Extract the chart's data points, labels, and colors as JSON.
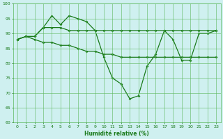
{
  "xlabel": "Humidité relative (%)",
  "background_color": "#cff0f0",
  "grid_color": "#5cb85c",
  "line_color": "#1a7a1a",
  "x": [
    0,
    1,
    2,
    3,
    4,
    5,
    6,
    7,
    8,
    9,
    10,
    11,
    12,
    13,
    14,
    15,
    16,
    17,
    18,
    19,
    20,
    21,
    22,
    23
  ],
  "y_main": [
    88,
    89,
    89,
    92,
    96,
    93,
    96,
    95,
    94,
    91,
    82,
    75,
    73,
    68,
    69,
    79,
    83,
    91,
    88,
    81,
    81,
    90,
    90,
    91
  ],
  "y_upper": [
    88,
    89,
    89,
    92,
    92,
    92,
    91,
    91,
    91,
    91,
    91,
    91,
    91,
    91,
    91,
    91,
    91,
    91,
    91,
    91,
    91,
    91,
    91,
    91
  ],
  "y_lower": [
    88,
    89,
    88,
    87,
    87,
    86,
    86,
    85,
    84,
    84,
    83,
    83,
    82,
    82,
    82,
    82,
    82,
    82,
    82,
    82,
    82,
    82,
    82,
    82
  ],
  "ylim": [
    60,
    100
  ],
  "xlim": [
    -0.5,
    23.5
  ],
  "yticks": [
    60,
    65,
    70,
    75,
    80,
    85,
    90,
    95,
    100
  ],
  "xticks": [
    0,
    1,
    2,
    3,
    4,
    5,
    6,
    7,
    8,
    9,
    10,
    11,
    12,
    13,
    14,
    15,
    16,
    17,
    18,
    19,
    20,
    21,
    22,
    23
  ],
  "xlabel_fontsize": 5.5,
  "tick_fontsize": 4.5,
  "linewidth": 0.9,
  "marker_size": 2.0
}
